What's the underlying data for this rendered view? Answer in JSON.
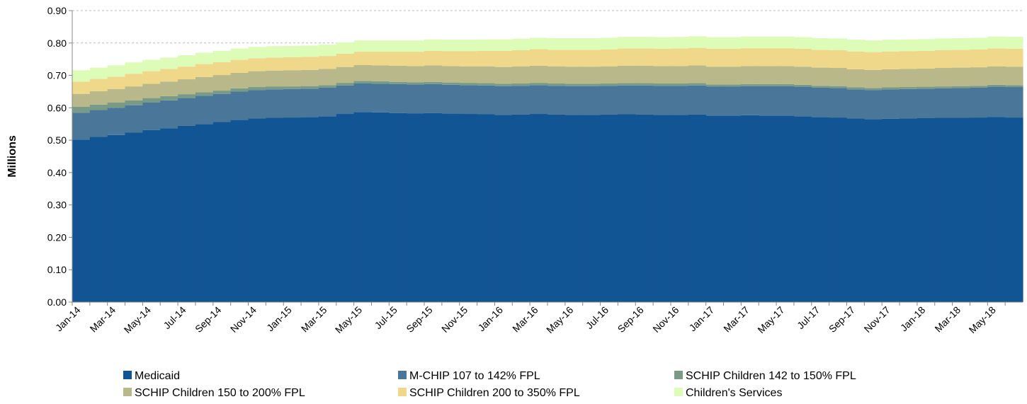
{
  "chart_data": {
    "type": "stacked-area",
    "y_label": "Millions",
    "categories": [
      "Jan-14",
      null,
      "Mar-14",
      null,
      "May-14",
      null,
      "Jul-14",
      null,
      "Sep-14",
      null,
      "Nov-14",
      null,
      "Jan-15",
      null,
      "Mar-15",
      null,
      "May-15",
      null,
      "Jul-15",
      null,
      "Sep-15",
      null,
      "Nov-15",
      null,
      "Jan-16",
      null,
      "Mar-16",
      null,
      "May-16",
      null,
      "Jul-16",
      null,
      "Sep-16",
      null,
      "Nov-16",
      null,
      "Jan-17",
      null,
      "Mar-17",
      null,
      "May-17",
      null,
      "Jul-17",
      null,
      "Sep-17",
      null,
      "Nov-17",
      null,
      "Jan-18",
      null,
      "Mar-18",
      null,
      "May-18",
      null
    ],
    "ylim": [
      0,
      0.9
    ],
    "yticks": [
      {
        "value": 0,
        "label": "0.00"
      },
      {
        "value": 0.1,
        "label": "0.10"
      },
      {
        "value": 0.2,
        "label": "0.20"
      },
      {
        "value": 0.3,
        "label": "0.30"
      },
      {
        "value": 0.4,
        "label": "0.40"
      },
      {
        "value": 0.5,
        "label": "0.50"
      },
      {
        "value": 0.6,
        "label": "0.60"
      },
      {
        "value": 0.7,
        "label": "0.70"
      },
      {
        "value": 0.8,
        "label": "0.80"
      },
      {
        "value": 0.9,
        "label": "0.90"
      }
    ],
    "grid": true,
    "series": [
      {
        "name": "Medicaid",
        "color": "#125594",
        "values": [
          0.502,
          0.51,
          0.516,
          0.524,
          0.531,
          0.537,
          0.544,
          0.55,
          0.556,
          0.563,
          0.567,
          0.569,
          0.57,
          0.571,
          0.574,
          0.581,
          0.587,
          0.586,
          0.584,
          0.583,
          0.584,
          0.582,
          0.581,
          0.58,
          0.578,
          0.579,
          0.581,
          0.579,
          0.578,
          0.578,
          0.579,
          0.58,
          0.579,
          0.578,
          0.578,
          0.579,
          0.576,
          0.576,
          0.577,
          0.576,
          0.576,
          0.574,
          0.571,
          0.57,
          0.567,
          0.565,
          0.566,
          0.567,
          0.568,
          0.569,
          0.569,
          0.57,
          0.572,
          0.57
        ]
      },
      {
        "name": "M-CHIP 107 to 142%  FPL",
        "color": "#4a7799",
        "values": [
          0.083,
          0.083,
          0.084,
          0.084,
          0.085,
          0.086,
          0.086,
          0.087,
          0.087,
          0.087,
          0.088,
          0.088,
          0.088,
          0.088,
          0.088,
          0.088,
          0.088,
          0.088,
          0.089,
          0.089,
          0.089,
          0.089,
          0.089,
          0.089,
          0.089,
          0.089,
          0.089,
          0.089,
          0.089,
          0.089,
          0.089,
          0.089,
          0.09,
          0.09,
          0.09,
          0.09,
          0.09,
          0.09,
          0.09,
          0.091,
          0.091,
          0.091,
          0.091,
          0.091,
          0.09,
          0.09,
          0.091,
          0.091,
          0.091,
          0.091,
          0.092,
          0.092,
          0.093,
          0.094
        ]
      },
      {
        "name": "SCHIP Children 142 to 150% FPL",
        "color": "#7a9a88",
        "values": [
          0.018,
          0.017,
          0.016,
          0.015,
          0.014,
          0.013,
          0.012,
          0.011,
          0.01,
          0.01,
          0.009,
          0.009,
          0.008,
          0.008,
          0.008,
          0.008,
          0.008,
          0.008,
          0.007,
          0.007,
          0.007,
          0.007,
          0.007,
          0.007,
          0.007,
          0.007,
          0.007,
          0.007,
          0.007,
          0.007,
          0.007,
          0.007,
          0.007,
          0.007,
          0.007,
          0.007,
          0.006,
          0.006,
          0.006,
          0.006,
          0.006,
          0.006,
          0.006,
          0.006,
          0.006,
          0.006,
          0.006,
          0.006,
          0.006,
          0.006,
          0.006,
          0.006,
          0.006,
          0.006
        ]
      },
      {
        "name": "SCHIP  Children 150 to 200% FPL",
        "color": "#b8b88a",
        "values": [
          0.04,
          0.041,
          0.042,
          0.043,
          0.044,
          0.045,
          0.046,
          0.047,
          0.048,
          0.048,
          0.049,
          0.049,
          0.05,
          0.05,
          0.05,
          0.049,
          0.049,
          0.049,
          0.05,
          0.05,
          0.051,
          0.051,
          0.051,
          0.052,
          0.052,
          0.053,
          0.053,
          0.053,
          0.053,
          0.053,
          0.053,
          0.054,
          0.054,
          0.054,
          0.054,
          0.055,
          0.055,
          0.055,
          0.056,
          0.056,
          0.056,
          0.056,
          0.056,
          0.056,
          0.056,
          0.056,
          0.056,
          0.056,
          0.056,
          0.057,
          0.057,
          0.057,
          0.057,
          0.057
        ]
      },
      {
        "name": "SCHIP Children 200 to 350% FPL",
        "color": "#f0d88a",
        "values": [
          0.038,
          0.038,
          0.038,
          0.039,
          0.039,
          0.039,
          0.039,
          0.04,
          0.04,
          0.04,
          0.04,
          0.04,
          0.04,
          0.04,
          0.04,
          0.041,
          0.041,
          0.042,
          0.043,
          0.044,
          0.045,
          0.046,
          0.047,
          0.048,
          0.05,
          0.05,
          0.051,
          0.051,
          0.052,
          0.052,
          0.052,
          0.053,
          0.053,
          0.053,
          0.054,
          0.054,
          0.055,
          0.055,
          0.055,
          0.055,
          0.055,
          0.055,
          0.055,
          0.055,
          0.055,
          0.055,
          0.055,
          0.055,
          0.055,
          0.055,
          0.055,
          0.055,
          0.055,
          0.055
        ]
      },
      {
        "name": "Children's Services",
        "color": "#dcfcb8",
        "values": [
          0.035,
          0.035,
          0.035,
          0.035,
          0.035,
          0.035,
          0.035,
          0.035,
          0.035,
          0.035,
          0.035,
          0.035,
          0.035,
          0.035,
          0.035,
          0.035,
          0.035,
          0.035,
          0.035,
          0.035,
          0.035,
          0.035,
          0.035,
          0.035,
          0.035,
          0.035,
          0.035,
          0.036,
          0.036,
          0.036,
          0.036,
          0.036,
          0.036,
          0.036,
          0.036,
          0.036,
          0.036,
          0.036,
          0.036,
          0.036,
          0.036,
          0.036,
          0.036,
          0.036,
          0.036,
          0.036,
          0.036,
          0.036,
          0.036,
          0.036,
          0.036,
          0.036,
          0.037,
          0.037
        ]
      }
    ]
  }
}
